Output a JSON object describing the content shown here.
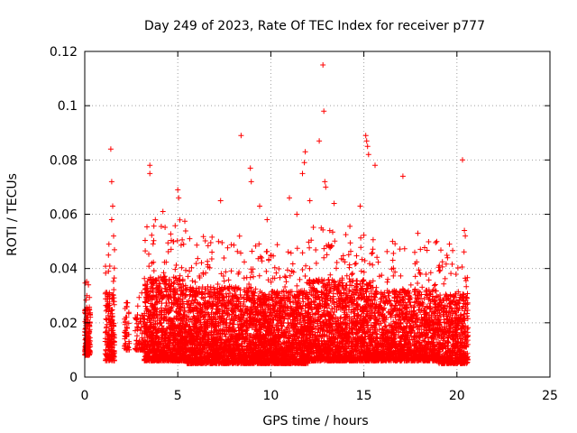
{
  "chart_data": {
    "type": "scatter",
    "title": "Day 249 of 2023, Rate Of TEC Index for receiver p777",
    "xlabel": "GPS time / hours",
    "ylabel": "ROTI / TECUs",
    "xlim": [
      0,
      25
    ],
    "ylim": [
      0,
      0.12
    ],
    "x_ticks": [
      "0",
      "5",
      "10",
      "15",
      "20",
      "25"
    ],
    "y_ticks": [
      "0",
      "0.02",
      "0.04",
      "0.06",
      "0.08",
      "0.1",
      "0.12"
    ],
    "grid": true,
    "marker": "plus",
    "series_color": "#ff0000",
    "points_sample": [
      [
        0.05,
        0.018
      ],
      [
        0.1,
        0.025
      ],
      [
        0.15,
        0.012
      ],
      [
        0.2,
        0.034
      ],
      [
        0.25,
        0.02
      ],
      [
        1.3,
        0.049
      ],
      [
        1.4,
        0.084
      ],
      [
        1.45,
        0.072
      ],
      [
        1.5,
        0.063
      ],
      [
        1.45,
        0.058
      ],
      [
        1.55,
        0.052
      ],
      [
        3.5,
        0.078
      ],
      [
        3.5,
        0.075
      ],
      [
        4.2,
        0.061
      ],
      [
        5.0,
        0.069
      ],
      [
        5.05,
        0.066
      ],
      [
        7.3,
        0.065
      ],
      [
        8.4,
        0.089
      ],
      [
        8.9,
        0.077
      ],
      [
        8.95,
        0.072
      ],
      [
        9.4,
        0.063
      ],
      [
        9.8,
        0.058
      ],
      [
        11.0,
        0.066
      ],
      [
        11.4,
        0.06
      ],
      [
        11.7,
        0.075
      ],
      [
        11.8,
        0.079
      ],
      [
        11.85,
        0.083
      ],
      [
        12.1,
        0.065
      ],
      [
        12.6,
        0.087
      ],
      [
        12.8,
        0.115
      ],
      [
        12.85,
        0.098
      ],
      [
        12.9,
        0.072
      ],
      [
        12.95,
        0.07
      ],
      [
        13.4,
        0.064
      ],
      [
        14.8,
        0.063
      ],
      [
        15.1,
        0.089
      ],
      [
        15.15,
        0.087
      ],
      [
        15.2,
        0.085
      ],
      [
        15.25,
        0.082
      ],
      [
        15.6,
        0.078
      ],
      [
        17.1,
        0.074
      ],
      [
        17.9,
        0.053
      ],
      [
        19.6,
        0.049
      ],
      [
        19.8,
        0.005
      ],
      [
        20.3,
        0.08
      ],
      [
        20.4,
        0.054
      ],
      [
        20.45,
        0.052
      ]
    ],
    "clusters": [
      {
        "x_range": [
          0.0,
          0.3
        ],
        "y_range": [
          0.008,
          0.037
        ],
        "count": 180
      },
      {
        "x_range": [
          1.1,
          1.6
        ],
        "y_range": [
          0.006,
          0.048
        ],
        "count": 200
      },
      {
        "x_range": [
          2.1,
          2.4
        ],
        "y_range": [
          0.01,
          0.04
        ],
        "count": 45
      },
      {
        "x_range": [
          2.7,
          3.2
        ],
        "y_range": [
          0.01,
          0.032
        ],
        "count": 70
      },
      {
        "x_range": [
          3.2,
          5.5
        ],
        "y_range": [
          0.006,
          0.058
        ],
        "count": 1100
      },
      {
        "x_range": [
          5.5,
          9.0
        ],
        "y_range": [
          0.005,
          0.052
        ],
        "count": 1500
      },
      {
        "x_range": [
          9.0,
          12.0
        ],
        "y_range": [
          0.005,
          0.05
        ],
        "count": 1400
      },
      {
        "x_range": [
          12.0,
          15.5
        ],
        "y_range": [
          0.006,
          0.056
        ],
        "count": 1500
      },
      {
        "x_range": [
          15.5,
          19.0
        ],
        "y_range": [
          0.006,
          0.05
        ],
        "count": 1300
      },
      {
        "x_range": [
          19.0,
          20.6
        ],
        "y_range": [
          0.005,
          0.048
        ],
        "count": 600
      }
    ]
  }
}
